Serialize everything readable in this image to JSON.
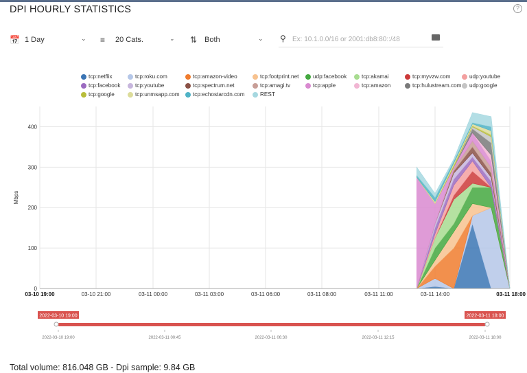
{
  "header": {
    "title": "DPI HOURLY STATISTICS",
    "help_icon": "question-circle-icon"
  },
  "controls": {
    "period": {
      "icon": "calendar-icon",
      "value": "1 Day"
    },
    "cats": {
      "icon": "list-icon",
      "value": "20 Cats."
    },
    "direction": {
      "icon": "up-down-arrows-icon",
      "value": "Both"
    },
    "filter": {
      "icon": "map-pin-icon",
      "placeholder": "Ex: 10.1.0.0/16 or 2001:db8:80::/48",
      "value": ""
    }
  },
  "chart_data": {
    "type": "area",
    "stacked": true,
    "ylabel": "Mbps",
    "ylim": [
      0,
      450
    ],
    "yticks": [
      0,
      100,
      200,
      300,
      400
    ],
    "xticks": [
      "03-10 19:00",
      "03-10 21:00",
      "03-11 00:00",
      "03-11 03:00",
      "03-11 06:00",
      "03-11 08:00",
      "03-11 11:00",
      "03-11 14:00",
      "03-11 18:00"
    ],
    "xticks_bold": [
      "03-10 19:00",
      "03-11 18:00"
    ],
    "x": [
      "03-11 13:00",
      "03-11 14:00",
      "03-11 15:00",
      "03-11 16:00",
      "03-11 17:00",
      "03-11 18:00"
    ],
    "legend_position": "top",
    "grid": true,
    "series": [
      {
        "name": "tcp:netflix",
        "color": "#3b75b4",
        "values": [
          0,
          5,
          0,
          160,
          0,
          0
        ]
      },
      {
        "name": "tcp:roku.com",
        "color": "#b5c7e8",
        "values": [
          0,
          20,
          0,
          20,
          200,
          0
        ]
      },
      {
        "name": "tcp:amazon-video",
        "color": "#f07c2e",
        "values": [
          0,
          30,
          100,
          0,
          0,
          0
        ]
      },
      {
        "name": "tcp:footprint.net",
        "color": "#f7c28f",
        "values": [
          0,
          15,
          40,
          30,
          0,
          0
        ]
      },
      {
        "name": "udp:facebook",
        "color": "#44a840",
        "values": [
          0,
          30,
          20,
          40,
          50,
          0
        ]
      },
      {
        "name": "tcp:akamai",
        "color": "#a8dc90",
        "values": [
          0,
          25,
          60,
          10,
          0,
          0
        ]
      },
      {
        "name": "tcp:myvzw.com",
        "color": "#cc3a3a",
        "values": [
          0,
          0,
          10,
          30,
          0,
          0
        ]
      },
      {
        "name": "udp:youtube",
        "color": "#f3a0a0",
        "values": [
          0,
          10,
          25,
          25,
          0,
          0
        ]
      },
      {
        "name": "tcp:facebook",
        "color": "#9b6bc0",
        "values": [
          0,
          15,
          15,
          10,
          15,
          0
        ]
      },
      {
        "name": "tcp:youtube",
        "color": "#c7b6dd",
        "values": [
          0,
          10,
          15,
          10,
          10,
          0
        ]
      },
      {
        "name": "tcp:spectrum.net",
        "color": "#8a5146",
        "values": [
          0,
          0,
          5,
          15,
          10,
          0
        ]
      },
      {
        "name": "tcp:amagi.tv",
        "color": "#c89e97",
        "values": [
          0,
          0,
          5,
          15,
          15,
          0
        ]
      },
      {
        "name": "tcp:apple",
        "color": "#d98ad0",
        "values": [
          275,
          50,
          5,
          20,
          15,
          0
        ]
      },
      {
        "name": "tcp:amazon",
        "color": "#f1b6d3",
        "values": [
          0,
          0,
          0,
          0,
          15,
          0
        ]
      },
      {
        "name": "tcp:hulustream.com",
        "color": "#7a7a7a",
        "values": [
          0,
          0,
          0,
          10,
          30,
          0
        ]
      },
      {
        "name": "udp:google",
        "color": "#c4c4c4",
        "values": [
          0,
          0,
          0,
          5,
          15,
          0
        ]
      },
      {
        "name": "tcp:google",
        "color": "#b8bd3a",
        "values": [
          0,
          0,
          5,
          2,
          5,
          0
        ]
      },
      {
        "name": "tcp:unmsapp.com",
        "color": "#dcdc9a",
        "values": [
          0,
          5,
          5,
          5,
          10,
          0
        ]
      },
      {
        "name": "tcp:echostarcdn.com",
        "color": "#4fb3c6",
        "values": [
          5,
          10,
          5,
          3,
          10,
          0
        ]
      },
      {
        "name": "REST",
        "color": "#a6d8e0",
        "values": [
          20,
          10,
          5,
          25,
          25,
          0
        ]
      }
    ]
  },
  "navigator": {
    "start_label": "2022-03-10 19:00",
    "end_label": "2022-03-11 18:00",
    "ticks": [
      "2022-03-10 19:00",
      "2022-03-11 00:45",
      "2022-03-11 06:30",
      "2022-03-11 12:15",
      "2022-03-11 18:00"
    ]
  },
  "footer": {
    "total": "Total volume: 816.048 GB - Dpi sample: 9.84 GB"
  }
}
